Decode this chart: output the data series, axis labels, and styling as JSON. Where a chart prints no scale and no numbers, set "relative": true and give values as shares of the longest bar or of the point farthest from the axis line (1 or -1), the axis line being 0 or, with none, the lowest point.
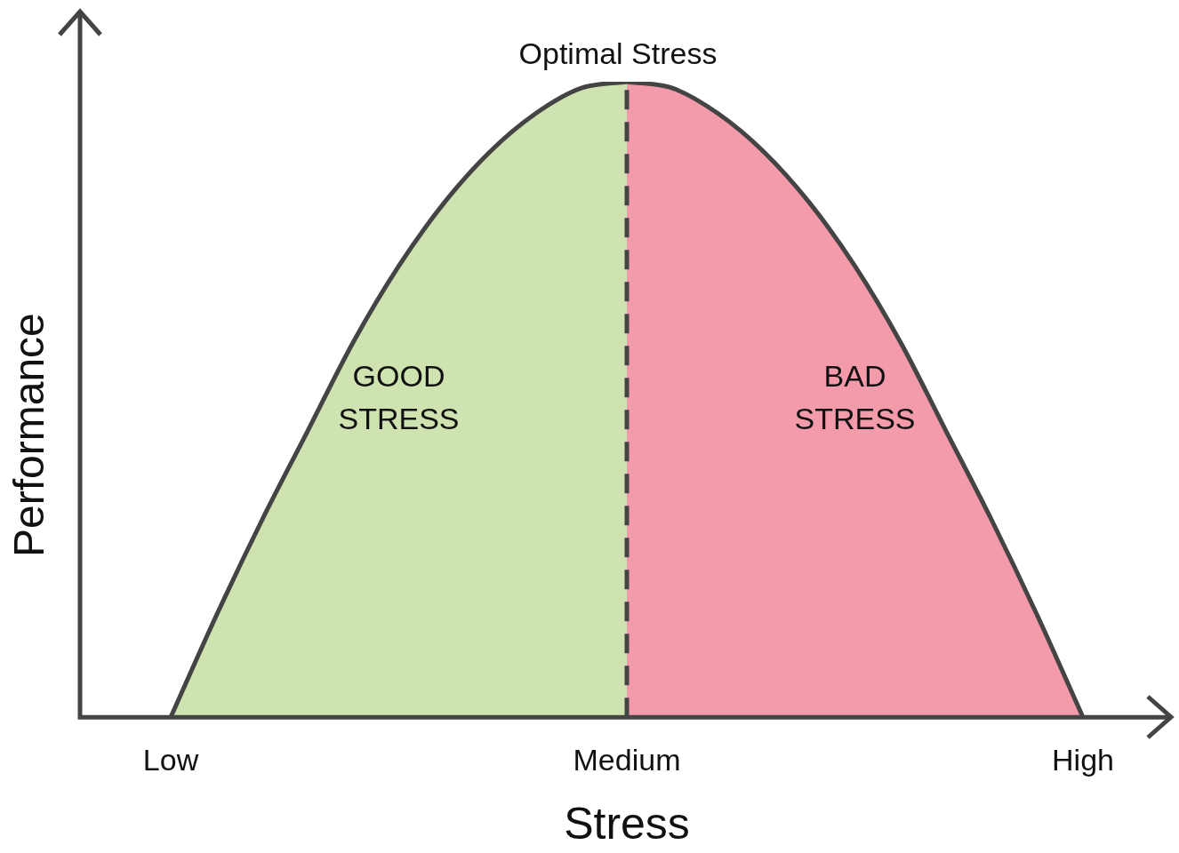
{
  "chart_data": {
    "type": "area",
    "relative": true,
    "xlabel": "Stress",
    "ylabel": "Performance",
    "categories": [
      "Low",
      null,
      null,
      null,
      null,
      null,
      null,
      null,
      null,
      null,
      "Medium",
      null,
      null,
      null,
      null,
      null,
      null,
      null,
      null,
      null,
      "High"
    ],
    "series": [
      {
        "name": "GOOD STRESS",
        "color": "#cfe3b0",
        "values": [
          0,
          0.16,
          0.31,
          0.45,
          0.59,
          0.71,
          0.81,
          0.89,
          0.95,
          0.99,
          1,
          null,
          null,
          null,
          null,
          null,
          null,
          null,
          null,
          null,
          null
        ]
      },
      {
        "name": "BAD STRESS",
        "color": "#f39aab",
        "values": [
          null,
          null,
          null,
          null,
          null,
          null,
          null,
          null,
          null,
          null,
          1,
          0.99,
          0.95,
          0.89,
          0.81,
          0.71,
          0.59,
          0.45,
          0.31,
          0.16,
          0
        ]
      }
    ],
    "ref_lines": [
      {
        "axis": "x",
        "value": "Medium",
        "label": "Optimal Stress",
        "line_style": "dashed"
      }
    ],
    "grid": false,
    "legend": false
  }
}
